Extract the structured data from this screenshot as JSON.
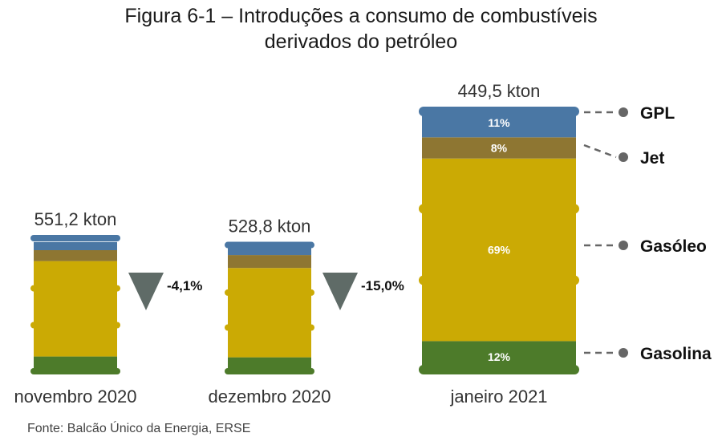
{
  "title_lines": [
    "Figura 6-1 – Introduções a consumo de combustíveis",
    "derivados do petróleo"
  ],
  "source": "Fonte: Balcão Único da Energia, ERSE",
  "colors": {
    "GPL": "#4a77a4",
    "Jet": "#8e7632",
    "Gasóleo": "#cbaa04",
    "Gasolina": "#4d7b2a",
    "triangle": "#5f6b67",
    "connector": "#666666"
  },
  "chart_data": {
    "type": "stacked-barrel",
    "title": "Figura 6-1 – Introduções a consumo de combustíveis derivados do petróleo",
    "categories": [
      "novembro 2020",
      "dezembro 2020",
      "janeiro 2021"
    ],
    "totals": [
      551.2,
      528.8,
      449.5
    ],
    "total_labels": [
      "551,2 kton",
      "528,8 kton",
      "449,5 kton"
    ],
    "unit": "kton",
    "series_order": [
      "Gasolina",
      "Gasóleo",
      "Jet",
      "GPL"
    ],
    "shares_pct": [
      {
        "Gasolina": 12,
        "Gasóleo": 70,
        "Jet": 8,
        "GPL": 6
      },
      {
        "Gasolina": 12,
        "Gasóleo": 69,
        "Jet": 10,
        "GPL": 8
      },
      {
        "Gasolina": 12,
        "Gasóleo": 69,
        "Jet": 8,
        "GPL": 11
      }
    ],
    "segment_labels": {
      "GPL": "11%",
      "Jet": "8%",
      "Gasóleo": "69%",
      "Gasolina": "12%"
    },
    "changes": [
      {
        "label": "-4,1%",
        "value": -4.1
      },
      {
        "label": "-15,0%",
        "value": -15.0
      }
    ],
    "legend": [
      "GPL",
      "Jet",
      "Gasóleo",
      "Gasolina"
    ]
  }
}
